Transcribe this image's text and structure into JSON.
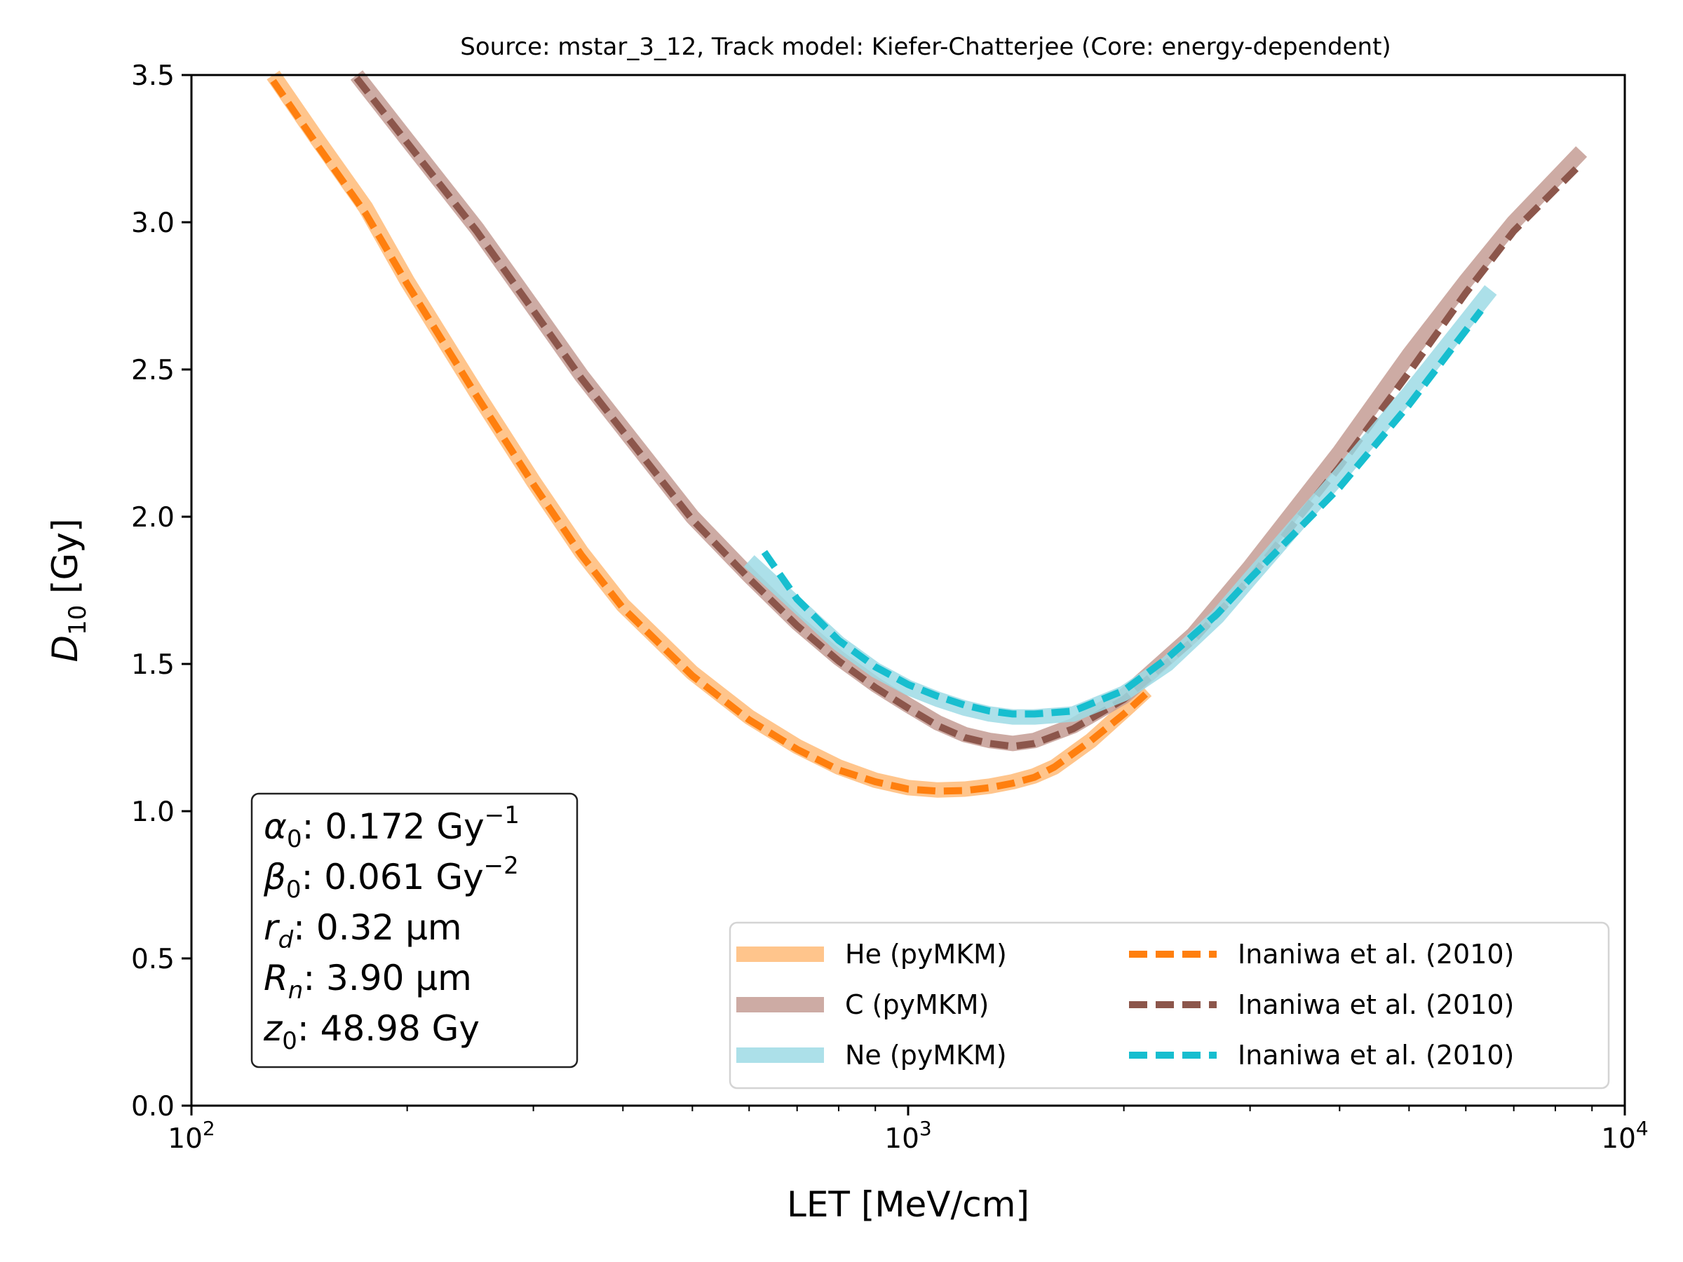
{
  "chart_data": {
    "type": "line",
    "title": "Source: mstar_3_12, Track model: Kiefer-Chatterjee (Core: energy-dependent)",
    "xlabel": "LET [MeV/cm]",
    "ylabel": "D10 [Gy]",
    "ylabel_parts": {
      "base": "D",
      "sub": "10",
      "unit": " [Gy]"
    },
    "xscale": "log",
    "xlim": [
      100,
      10000
    ],
    "ylim": [
      0,
      3.5
    ],
    "grid": false,
    "x_ticks": [
      {
        "value": 100,
        "base": "10",
        "exp": "2"
      },
      {
        "value": 1000,
        "base": "10",
        "exp": "3"
      },
      {
        "value": 10000,
        "base": "10",
        "exp": "4"
      }
    ],
    "y_ticks": [
      {
        "value": 0.0,
        "label": "0.0"
      },
      {
        "value": 0.5,
        "label": "0.5"
      },
      {
        "value": 1.0,
        "label": "1.0"
      },
      {
        "value": 1.5,
        "label": "1.5"
      },
      {
        "value": 2.0,
        "label": "2.0"
      },
      {
        "value": 2.5,
        "label": "2.5"
      },
      {
        "value": 3.0,
        "label": "3.0"
      },
      {
        "value": 3.5,
        "label": "3.5"
      }
    ],
    "legend_position": "lower right",
    "series": [
      {
        "name": "He (pyMKM)",
        "style": "solid",
        "color": "#ffbb78",
        "x": [
          130,
          150,
          175,
          200,
          250,
          300,
          350,
          400,
          500,
          600,
          700,
          800,
          900,
          1000,
          1100,
          1200,
          1300,
          1400,
          1500,
          1600,
          1800,
          2000,
          2150
        ],
        "y": [
          3.5,
          3.28,
          3.05,
          2.8,
          2.42,
          2.12,
          1.88,
          1.7,
          1.47,
          1.32,
          1.22,
          1.15,
          1.105,
          1.08,
          1.072,
          1.075,
          1.085,
          1.1,
          1.12,
          1.15,
          1.24,
          1.34,
          1.41
        ]
      },
      {
        "name": "C (pyMKM)",
        "style": "solid",
        "color": "#c49c94",
        "x": [
          170,
          200,
          250,
          300,
          350,
          400,
          500,
          600,
          700,
          800,
          900,
          1000,
          1100,
          1200,
          1300,
          1400,
          1500,
          1700,
          2000,
          2500,
          3000,
          4000,
          5000,
          6000,
          7000,
          8700
        ],
        "y": [
          3.5,
          3.28,
          2.98,
          2.71,
          2.48,
          2.3,
          2.0,
          1.8,
          1.64,
          1.52,
          1.43,
          1.36,
          1.3,
          1.26,
          1.24,
          1.23,
          1.24,
          1.29,
          1.39,
          1.6,
          1.83,
          2.22,
          2.55,
          2.8,
          3.0,
          3.24
        ]
      },
      {
        "name": "Ne (pyMKM)",
        "style": "solid",
        "color": "#9edae5",
        "x": [
          600,
          700,
          800,
          900,
          1000,
          1100,
          1200,
          1300,
          1400,
          1500,
          1700,
          2000,
          2300,
          2700,
          3000,
          4000,
          5000,
          6500
        ],
        "y": [
          1.85,
          1.7,
          1.57,
          1.48,
          1.42,
          1.38,
          1.35,
          1.33,
          1.32,
          1.32,
          1.33,
          1.4,
          1.5,
          1.66,
          1.79,
          2.14,
          2.42,
          2.77
        ]
      },
      {
        "name": "Inaniwa et al. (2010)",
        "style": "dashed",
        "color": "#ff7f0e",
        "x": [
          130,
          150,
          175,
          200,
          250,
          300,
          350,
          400,
          500,
          600,
          700,
          800,
          900,
          1000,
          1100,
          1200,
          1300,
          1400,
          1500,
          1600,
          1800,
          2000,
          2150
        ],
        "y": [
          3.48,
          3.26,
          3.03,
          2.79,
          2.41,
          2.11,
          1.87,
          1.69,
          1.46,
          1.31,
          1.21,
          1.14,
          1.1,
          1.075,
          1.068,
          1.07,
          1.08,
          1.095,
          1.115,
          1.15,
          1.24,
          1.33,
          1.4
        ]
      },
      {
        "name": "Inaniwa et al. (2010)",
        "style": "dashed",
        "color": "#8c564b",
        "x": [
          170,
          200,
          250,
          300,
          350,
          400,
          500,
          600,
          700,
          800,
          900,
          1000,
          1100,
          1200,
          1300,
          1400,
          1500,
          1700,
          2000,
          2500,
          3000,
          4000,
          5000,
          6000,
          7000,
          8700
        ],
        "y": [
          3.49,
          3.27,
          2.97,
          2.7,
          2.47,
          2.29,
          1.99,
          1.79,
          1.63,
          1.51,
          1.42,
          1.35,
          1.29,
          1.25,
          1.23,
          1.22,
          1.23,
          1.28,
          1.38,
          1.58,
          1.79,
          2.17,
          2.49,
          2.76,
          2.97,
          3.2
        ]
      },
      {
        "name": "Inaniwa et al. (2010)",
        "style": "dashed",
        "color": "#17becf",
        "x": [
          630,
          700,
          800,
          900,
          1000,
          1100,
          1200,
          1300,
          1400,
          1500,
          1700,
          2000,
          2300,
          2700,
          3000,
          4000,
          5000,
          6300
        ],
        "y": [
          1.88,
          1.72,
          1.58,
          1.49,
          1.43,
          1.39,
          1.36,
          1.34,
          1.33,
          1.33,
          1.34,
          1.41,
          1.52,
          1.67,
          1.79,
          2.1,
          2.38,
          2.7
        ]
      }
    ],
    "legend": {
      "columns": [
        [
          0,
          1,
          2
        ],
        [
          3,
          4,
          5
        ]
      ]
    },
    "annotation_box": {
      "position": "lower left",
      "lines": [
        {
          "symbol": "α",
          "sub": "0",
          "text": ": 0.172 Gy",
          "sup": "−1"
        },
        {
          "symbol": "β",
          "sub": "0",
          "text": ": 0.061 Gy",
          "sup": "−2"
        },
        {
          "symbol": "r",
          "sub": "d",
          "text": ": 0.32 μm",
          "sup": ""
        },
        {
          "symbol": "R",
          "sub": "n",
          "text": ": 3.90 μm",
          "sup": ""
        },
        {
          "symbol": "z",
          "sub": "0",
          "text": ": 48.98 Gy",
          "sup": ""
        }
      ]
    }
  }
}
